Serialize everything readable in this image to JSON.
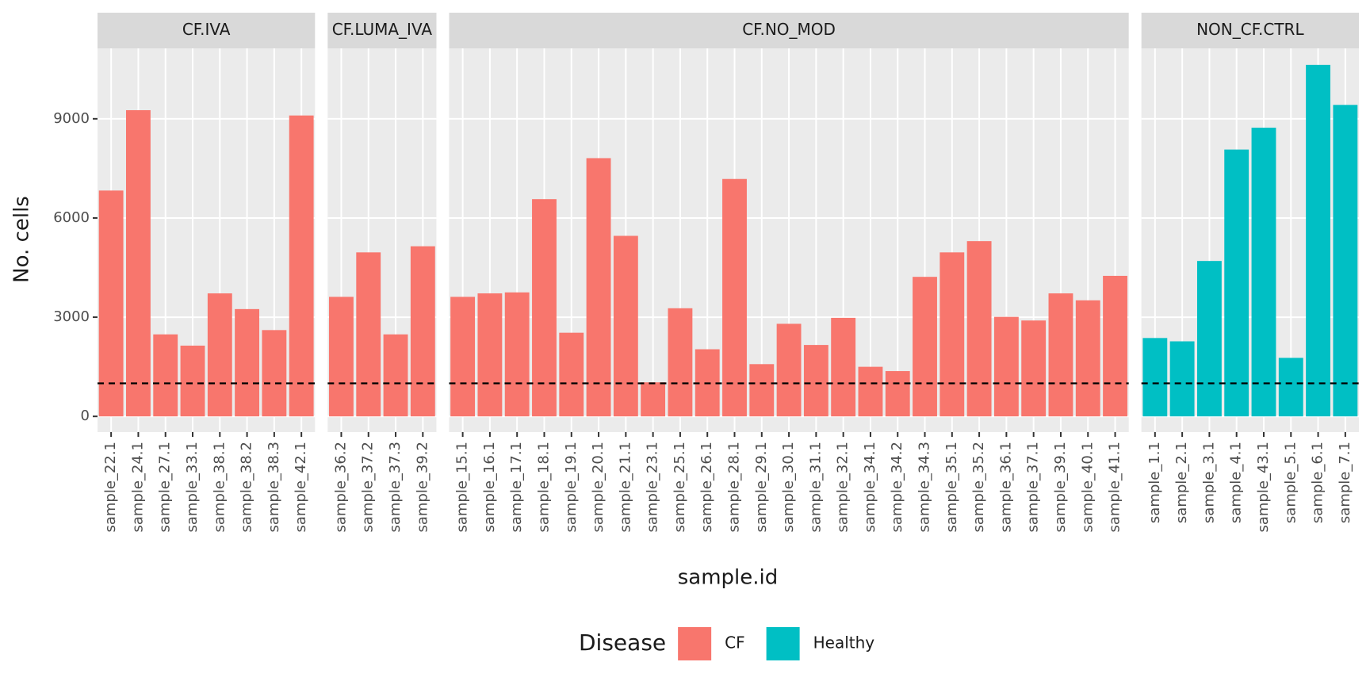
{
  "chart_data": {
    "type": "bar",
    "x_label": "sample.id",
    "y_label": "No. cells",
    "ylim": [
      -475,
      11130
    ],
    "yticks": [
      0,
      3000,
      6000,
      9000
    ],
    "grid": true,
    "reference_line": 1000,
    "legend": {
      "title": "Disease",
      "position": "bottom"
    },
    "series": [
      {
        "name": "CF",
        "color": "#F8766D"
      },
      {
        "name": "Healthy",
        "color": "#00BFC4"
      }
    ],
    "facets": [
      {
        "title": "CF.IVA",
        "series": 0,
        "categories": [
          "sample_22.1",
          "sample_24.1",
          "sample_27.1",
          "sample_33.1",
          "sample_38.1",
          "sample_38.2",
          "sample_38.3",
          "sample_42.1"
        ],
        "values": [
          6830,
          9260,
          2480,
          2140,
          3720,
          3245,
          2610,
          9100
        ]
      },
      {
        "title": "CF.LUMA_IVA",
        "series": 0,
        "categories": [
          "sample_36.2",
          "sample_37.2",
          "sample_37.3",
          "sample_39.2"
        ],
        "values": [
          3615,
          4960,
          2480,
          5145
        ]
      },
      {
        "title": "CF.NO_MOD",
        "series": 0,
        "categories": [
          "sample_15.1",
          "sample_16.1",
          "sample_17.1",
          "sample_18.1",
          "sample_19.1",
          "sample_20.1",
          "sample_21.1",
          "sample_23.1",
          "sample_25.1",
          "sample_26.1",
          "sample_28.1",
          "sample_29.1",
          "sample_30.1",
          "sample_31.1",
          "sample_32.1",
          "sample_34.1",
          "sample_34.2",
          "sample_34.3",
          "sample_35.1",
          "sample_35.2",
          "sample_36.1",
          "sample_37.1",
          "sample_39.1",
          "sample_40.1",
          "sample_41.1"
        ],
        "values": [
          3615,
          3720,
          3750,
          6570,
          2530,
          7810,
          5460,
          1030,
          3270,
          2030,
          7180,
          1580,
          2800,
          2160,
          2980,
          1500,
          1370,
          4220,
          4960,
          5300,
          3010,
          2900,
          3720,
          3510,
          4250
        ]
      },
      {
        "title": "NON_CF.CTRL",
        "series": 1,
        "categories": [
          "sample_1.1",
          "sample_2.1",
          "sample_3.1",
          "sample_4.1",
          "sample_43.1",
          "sample_5.1",
          "sample_6.1",
          "sample_7.1"
        ],
        "values": [
          2370,
          2270,
          4700,
          8070,
          8730,
          1770,
          10630,
          9420
        ]
      }
    ]
  }
}
